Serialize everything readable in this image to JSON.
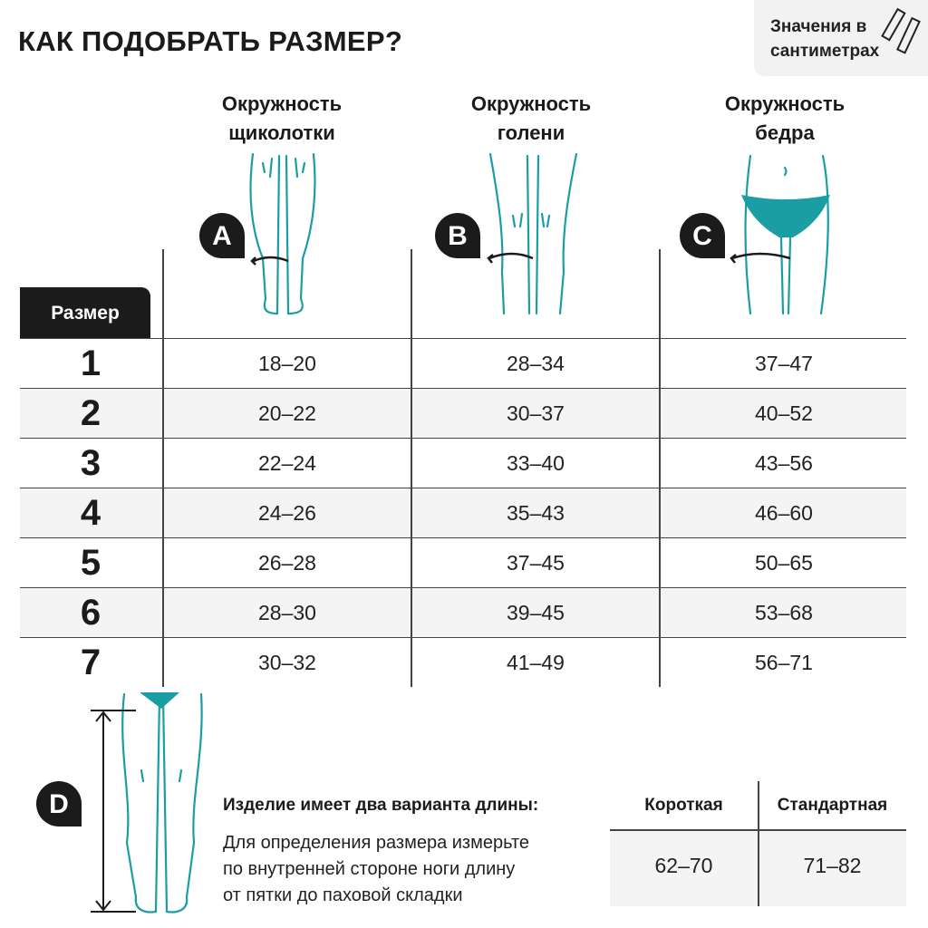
{
  "title": "КАК ПОДОБРАТЬ РАЗМЕР?",
  "units_badge": {
    "line1": "Значения в",
    "line2": "сантиметрах",
    "icon": "ruler-icon"
  },
  "columns": [
    {
      "marker": "A",
      "line1": "Окружность",
      "line2": "щиколотки"
    },
    {
      "marker": "B",
      "line1": "Окружность",
      "line2": "голени"
    },
    {
      "marker": "C",
      "line1": "Окружность",
      "line2": "бедра"
    }
  ],
  "size_label": "Размер",
  "rows": [
    {
      "size": "1",
      "values": [
        "18–20",
        "28–34",
        "37–47"
      ]
    },
    {
      "size": "2",
      "values": [
        "20–22",
        "30–37",
        "40–52"
      ]
    },
    {
      "size": "3",
      "values": [
        "22–24",
        "33–40",
        "43–56"
      ]
    },
    {
      "size": "4",
      "values": [
        "24–26",
        "35–43",
        "46–60"
      ]
    },
    {
      "size": "5",
      "values": [
        "26–28",
        "37–45",
        "50–65"
      ]
    },
    {
      "size": "6",
      "values": [
        "28–30",
        "39–45",
        "53–68"
      ]
    },
    {
      "size": "7",
      "values": [
        "30–32",
        "41–49",
        "56–71"
      ]
    }
  ],
  "length": {
    "marker": "D",
    "title": "Изделие имеет два варианта длины:",
    "description": [
      "Для определения размера измерьте",
      "по внутренней стороне ноги длину",
      "от пятки до паховой складки"
    ],
    "headers": [
      "Короткая",
      "Стандартная"
    ],
    "values": [
      "62–70",
      "71–82"
    ]
  },
  "colors": {
    "accent": "#1a9ea3",
    "dark": "#1b1b1b",
    "row_alt": "#f4f4f4"
  }
}
